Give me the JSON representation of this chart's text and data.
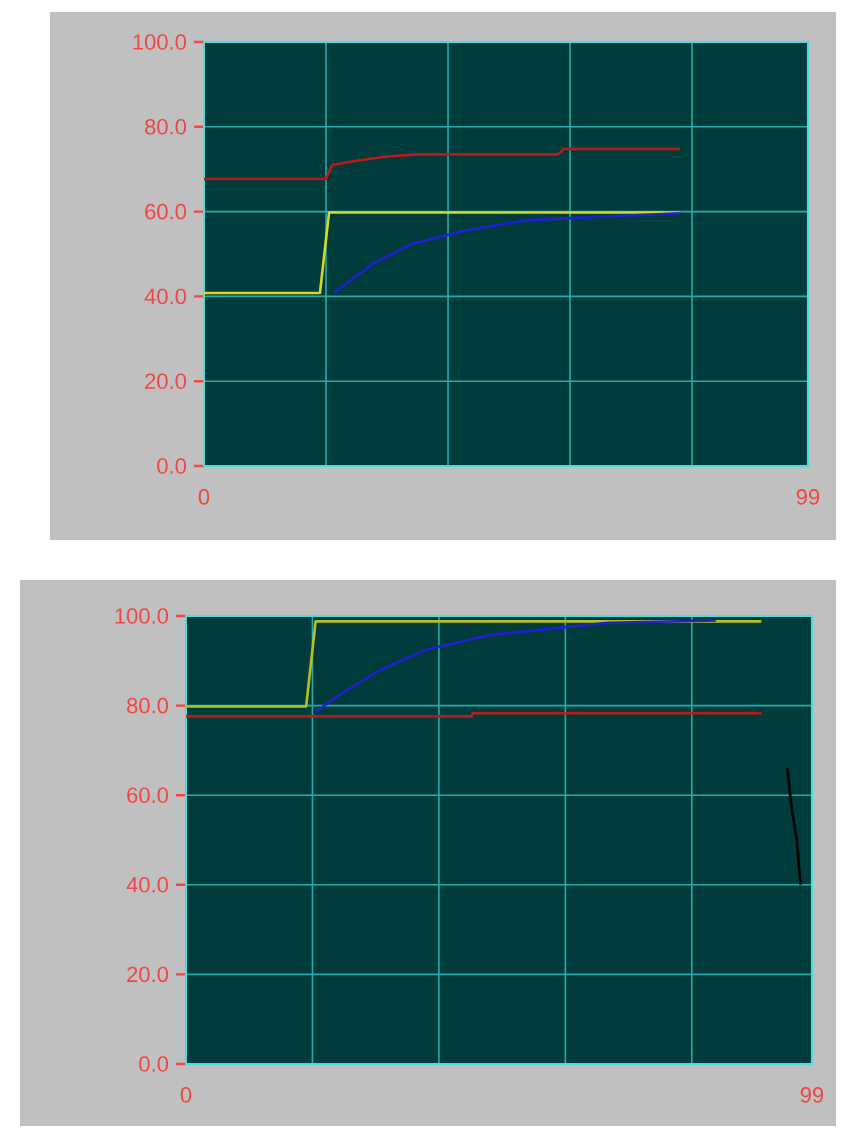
{
  "chart_data": [
    {
      "type": "line",
      "xlim": [
        0,
        99
      ],
      "ylim": [
        0,
        100
      ],
      "xticks": [
        0,
        {
          "value": 20,
          "label": null
        },
        {
          "value": 40,
          "label": null
        },
        {
          "value": 60,
          "label": null
        },
        {
          "value": 80,
          "label": null
        },
        99
      ],
      "yticks": [
        {
          "value": 0,
          "label": "0.0"
        },
        {
          "value": 20,
          "label": "20.0"
        },
        {
          "value": 40,
          "label": "40.0"
        },
        {
          "value": 60,
          "label": "60.0"
        },
        {
          "value": 80,
          "label": "80.0"
        },
        {
          "value": 100,
          "label": "100.0"
        }
      ],
      "grid": true,
      "marker": "none",
      "series": [
        {
          "color": "#c01818",
          "x": [
            0,
            20,
            21,
            25,
            30,
            35,
            58,
            59,
            78
          ],
          "values": [
            67.7,
            67.7,
            71,
            72,
            73,
            73.5,
            73.5,
            74.8,
            74.8
          ]
        },
        {
          "color": "#d8d820",
          "x": [
            0,
            19,
            20.5,
            78
          ],
          "values": [
            40.8,
            40.8,
            59.8,
            59.8
          ]
        },
        {
          "color": "#2020d0",
          "x": [
            21.3,
            27.8,
            34.3,
            43,
            52.9,
            64.9,
            78
          ],
          "values": [
            40.8,
            47.8,
            52.5,
            55.6,
            58,
            58.8,
            59.6
          ]
        }
      ]
    },
    {
      "type": "line",
      "xlim": [
        0,
        99
      ],
      "ylim": [
        0,
        100
      ],
      "xticks": [
        0,
        {
          "value": 20,
          "label": null
        },
        {
          "value": 40,
          "label": null
        },
        {
          "value": 60,
          "label": null
        },
        {
          "value": 80,
          "label": null
        },
        99
      ],
      "yticks": [
        {
          "value": 0,
          "label": "0.0"
        },
        {
          "value": 20,
          "label": "20.0"
        },
        {
          "value": 40,
          "label": "40.0"
        },
        {
          "value": 60,
          "label": "60.0"
        },
        {
          "value": 80,
          "label": "80.0"
        },
        {
          "value": 100,
          "label": "100.0"
        }
      ],
      "grid": true,
      "marker": "none",
      "series": [
        {
          "color": "#c01818",
          "x": [
            0,
            45.2,
            45.3,
            91
          ],
          "values": [
            77.6,
            77.6,
            78.3,
            78.3
          ]
        },
        {
          "color": "#b8c020",
          "x": [
            0,
            19,
            20.5,
            91
          ],
          "values": [
            79.8,
            79.8,
            98.8,
            98.8
          ]
        },
        {
          "color": "#2020d0",
          "x": [
            20.6,
            24.7,
            30.8,
            38,
            48.3,
            58.6,
            66.8,
            83.8
          ],
          "values": [
            78.7,
            82.8,
            88,
            92.5,
            95.8,
            97.3,
            98.5,
            99
          ]
        },
        {
          "color": "#000000",
          "x": [
            95.1,
            95.8,
            96.6,
            97.2
          ],
          "values": [
            66,
            57,
            50,
            40
          ]
        }
      ]
    }
  ]
}
